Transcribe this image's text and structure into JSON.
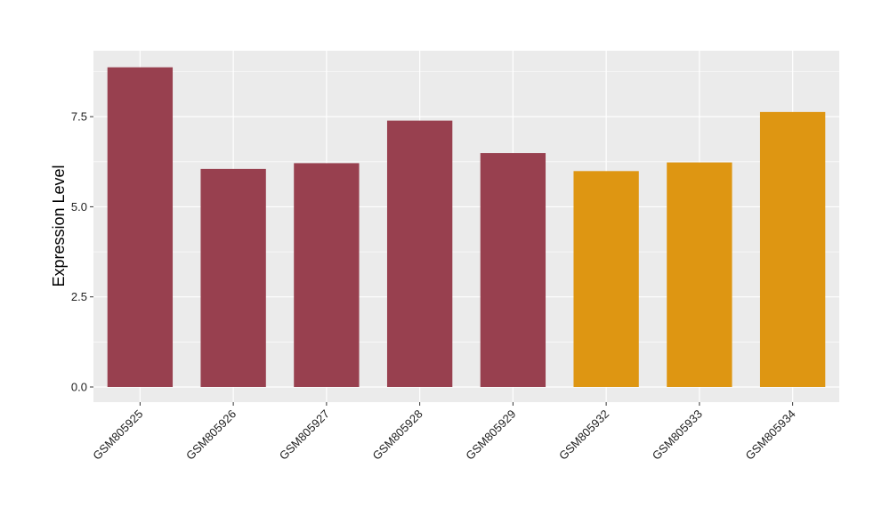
{
  "chart_data": {
    "type": "bar",
    "title": "",
    "xlabel": "",
    "ylabel": "Expression Level",
    "categories": [
      "GSM805925",
      "GSM805926",
      "GSM805927",
      "GSM805928",
      "GSM805929",
      "GSM805932",
      "GSM805933",
      "GSM805934"
    ],
    "values": [
      8.87,
      6.05,
      6.21,
      7.39,
      6.49,
      5.99,
      6.23,
      7.63
    ],
    "bar_colors": [
      "#98404F",
      "#98404F",
      "#98404F",
      "#98404F",
      "#98404F",
      "#DE9612",
      "#DE9612",
      "#DE9612"
    ],
    "ylim": [
      -0.42,
      9.33
    ],
    "yticks": [
      0.0,
      2.5,
      5.0,
      7.5
    ],
    "ytick_labels": [
      "0.0",
      "2.5",
      "5.0",
      "7.5"
    ],
    "grid": true,
    "panel_background": "#EBEBEB",
    "gridline_color": "#FFFFFF"
  }
}
